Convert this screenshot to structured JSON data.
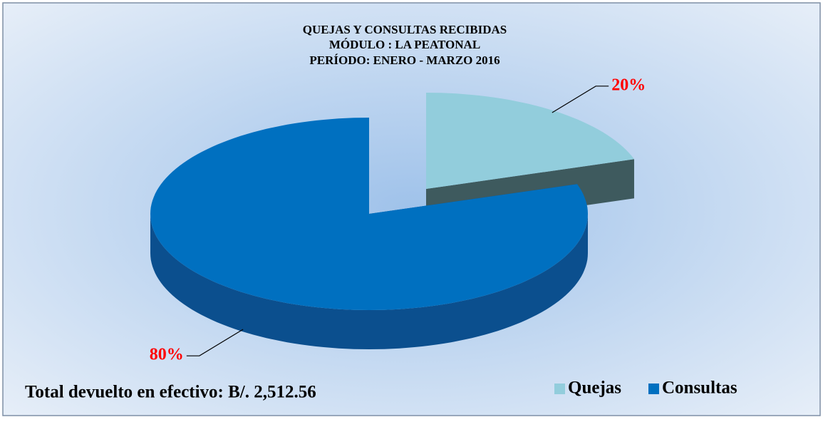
{
  "chart_data": {
    "type": "pie",
    "title": [
      "QUEJAS Y CONSULTAS RECIBIDAS",
      "MÓDULO : LA PEATONAL",
      "PERÍODO:  ENERO - MARZO 2016"
    ],
    "categories": [
      "Quejas",
      "Consultas"
    ],
    "values": [
      20,
      80
    ],
    "value_labels": [
      "20%",
      "80%"
    ],
    "colors": [
      "#92cddc",
      "#0070c0"
    ],
    "side_colors": [
      "#3e5a5e",
      "#0b4f8e"
    ],
    "legend": "bottom-right",
    "annotation": "Total devuelto en efectivo: B/. 2,512.56"
  }
}
